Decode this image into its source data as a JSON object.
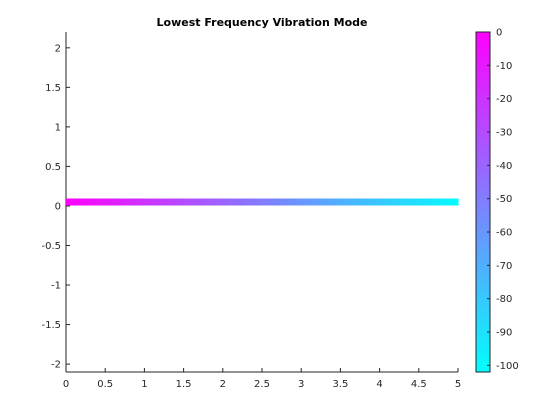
{
  "chart_data": {
    "type": "line",
    "title": "Lowest Frequency Vibration Mode",
    "xlabel": "",
    "ylabel": "",
    "xlim": [
      0,
      5
    ],
    "ylim": [
      -2.1,
      2.2
    ],
    "x_ticks": [
      "0",
      "0.5",
      "1",
      "1.5",
      "2",
      "2.5",
      "3",
      "3.5",
      "4",
      "4.5",
      "5"
    ],
    "y_ticks": [
      "-2",
      "-1.5",
      "-1",
      "-0.5",
      "0",
      "0.5",
      "1",
      "1.5",
      "2"
    ],
    "grid": false,
    "series": [
      {
        "x": [
          0,
          0.5,
          1,
          1.5,
          2,
          2.5,
          3,
          3.5,
          4,
          4.5,
          5
        ],
        "y": [
          0.05,
          0.05,
          0.05,
          0.05,
          0.05,
          0.05,
          0.05,
          0.05,
          0.05,
          0.05,
          0.05
        ],
        "color_values": [
          0,
          -10,
          -20,
          -30,
          -40,
          -50,
          -60,
          -70,
          -80,
          -90,
          -100
        ]
      }
    ],
    "colorbar": {
      "range": [
        -102,
        0
      ],
      "ticks": [
        "0",
        "-10",
        "-20",
        "-30",
        "-40",
        "-50",
        "-60",
        "-70",
        "-80",
        "-90",
        "-100"
      ],
      "colormap": [
        "#00ffff",
        "#ff00ff"
      ],
      "placement": "right"
    }
  }
}
